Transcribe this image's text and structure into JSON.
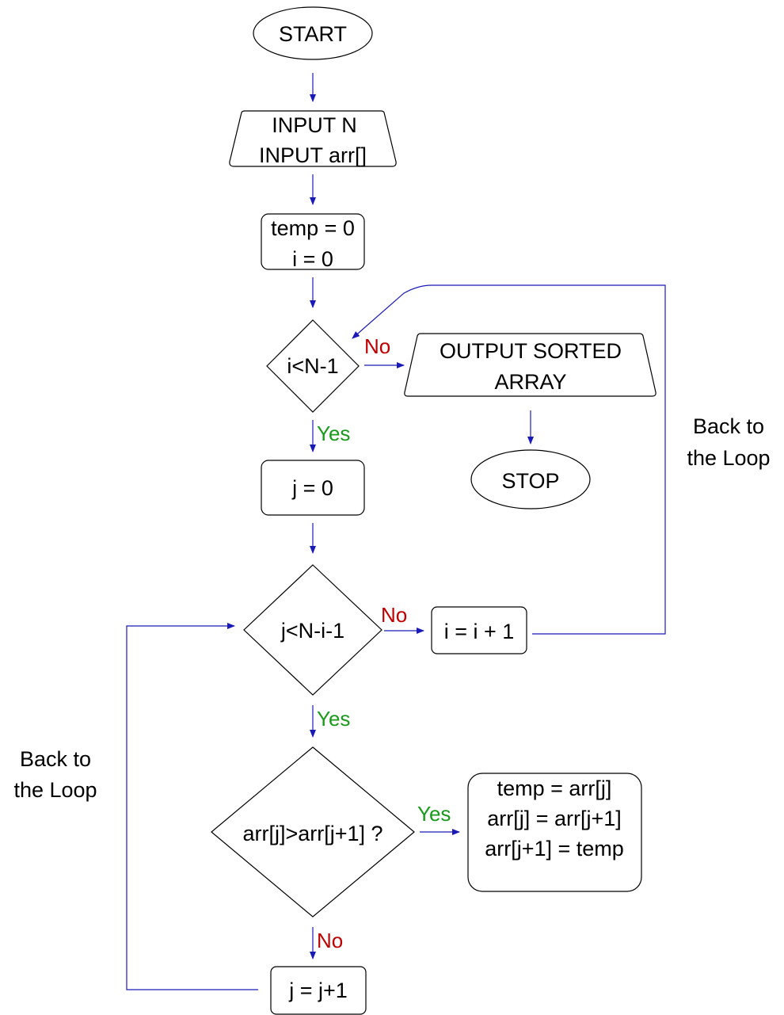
{
  "colors": {
    "connector": "#1a1ab8",
    "yes_label": "#1a9a1a",
    "no_label": "#c00000",
    "shape_stroke": "#000000"
  },
  "nodes": {
    "start": "START",
    "input": [
      "INPUT N",
      "INPUT arr[]"
    ],
    "init": [
      "temp = 0",
      "i = 0"
    ],
    "cond_outer": "i<N-1",
    "output": [
      "OUTPUT SORTED",
      "ARRAY"
    ],
    "stop": "STOP",
    "j_init": "j = 0",
    "cond_inner": "j<N-i-1",
    "i_inc": "i = i + 1",
    "cond_compare": "arr[j]>arr[j+1] ?",
    "swap": [
      "temp = arr[j]",
      "arr[j] = arr[j+1]",
      "arr[j+1] = temp"
    ],
    "j_inc": "j = j+1"
  },
  "edge_labels": {
    "outer_no": "No",
    "outer_yes": "Yes",
    "inner_no": "No",
    "inner_yes": "Yes",
    "compare_yes": "Yes",
    "compare_no": "No"
  },
  "notes": {
    "right_loop": [
      "Back to",
      "the Loop"
    ],
    "left_loop": [
      "Back to",
      "the Loop"
    ]
  }
}
